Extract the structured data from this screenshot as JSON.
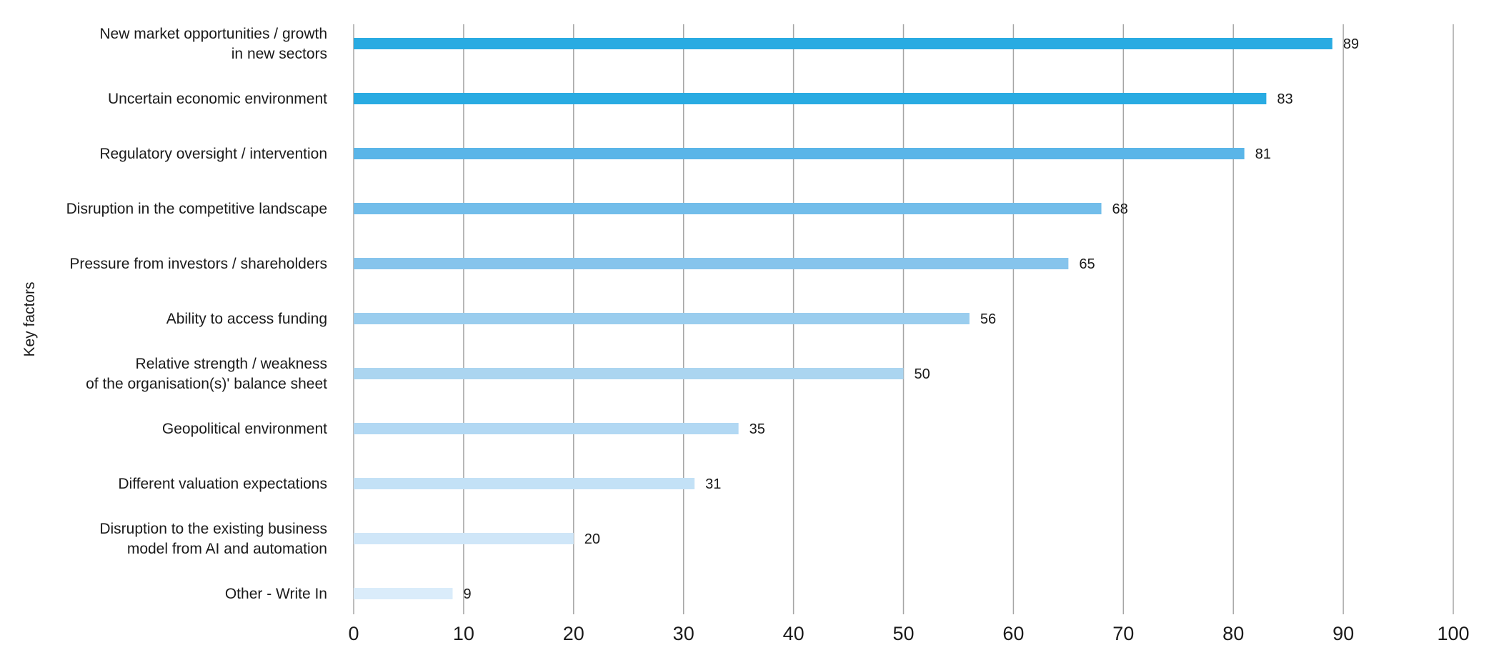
{
  "chart_data": {
    "type": "bar",
    "orientation": "horizontal",
    "title": "",
    "xlabel": "",
    "ylabel": "Key factors",
    "xlim": [
      0,
      100
    ],
    "xticks": [
      "0",
      "10",
      "20",
      "30",
      "40",
      "50",
      "60",
      "70",
      "80",
      "90",
      "100"
    ],
    "grid": "vertical",
    "categories": [
      [
        "New market opportunities / growth",
        "in new sectors"
      ],
      [
        "Uncertain economic environment"
      ],
      [
        "Regulatory oversight / intervention"
      ],
      [
        "Disruption in the competitive landscape"
      ],
      [
        "Pressure from investors / shareholders"
      ],
      [
        "Ability to access funding"
      ],
      [
        "Relative strength / weakness",
        "of the organisation(s)' balance sheet"
      ],
      [
        "Geopolitical environment"
      ],
      [
        "Different valuation expectations"
      ],
      [
        "Disruption to the existing business",
        "model from AI and automation"
      ],
      [
        "Other - Write In"
      ]
    ],
    "values": [
      89,
      83,
      81,
      68,
      65,
      56,
      50,
      35,
      31,
      20,
      9
    ],
    "value_labels": [
      "89",
      "83",
      "81",
      "68",
      "65",
      "56",
      "50",
      "35",
      "31",
      "20",
      "9"
    ],
    "colors": [
      "#29ABE2",
      "#29ABE2",
      "#5AB5E8",
      "#72BDEA",
      "#86C4EC",
      "#9ACDEE",
      "#ABD5F0",
      "#B2D8F3",
      "#C3E1F6",
      "#CFE6F8",
      "#DAECFA"
    ],
    "gridline_color": "#A6A6A6"
  }
}
